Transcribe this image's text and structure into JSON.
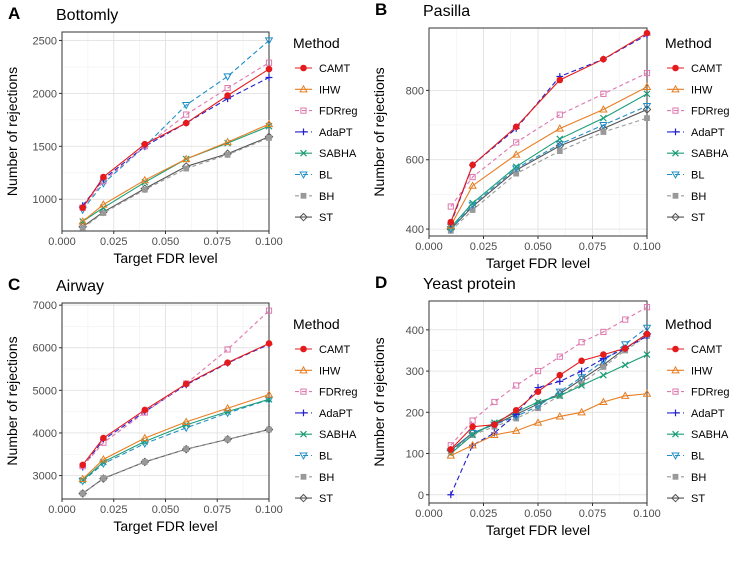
{
  "figure": {
    "legend_title": "Method",
    "methods": [
      {
        "name": "CAMT",
        "color": "#e41a1c",
        "marker": "circle",
        "dash": ""
      },
      {
        "name": "IHW",
        "color": "#e67e22",
        "marker": "triangle-up",
        "dash": ""
      },
      {
        "name": "FDRreg",
        "color": "#de77ae",
        "marker": "square-open",
        "dash": "4,3"
      },
      {
        "name": "AdaPT",
        "color": "#2020d0",
        "marker": "plus",
        "dash": "5,3"
      },
      {
        "name": "SABHA",
        "color": "#1b9e77",
        "marker": "x",
        "dash": ""
      },
      {
        "name": "BL",
        "color": "#1f8fc9",
        "marker": "triangle-down",
        "dash": "5,3"
      },
      {
        "name": "BH",
        "color": "#999999",
        "marker": "square",
        "dash": "4,3"
      },
      {
        "name": "ST",
        "color": "#555555",
        "marker": "diamond",
        "dash": ""
      }
    ]
  },
  "chart_data": [
    {
      "type": "line",
      "panel": "A",
      "title": "Bottomly",
      "xlabel": "Target FDR level",
      "ylabel": "Number of rejections",
      "x": [
        0.01,
        0.02,
        0.04,
        0.06,
        0.08,
        0.1
      ],
      "xlim": [
        0.0,
        0.1
      ],
      "xticks": [
        0.0,
        0.025,
        0.05,
        0.075,
        0.1
      ],
      "xtick_labels": [
        "0.000",
        "0.025",
        "0.050",
        "0.075",
        "0.100"
      ],
      "ylim": [
        700,
        2580
      ],
      "yticks": [
        1000,
        1500,
        2000,
        2500
      ],
      "ytick_labels": [
        "1000",
        "1500",
        "2000",
        "2500"
      ],
      "series": [
        {
          "name": "CAMT",
          "values": [
            920,
            1210,
            1520,
            1720,
            1980,
            2230
          ]
        },
        {
          "name": "IHW",
          "values": [
            790,
            950,
            1180,
            1380,
            1540,
            1710
          ]
        },
        {
          "name": "FDRreg",
          "values": [
            920,
            1170,
            1500,
            1800,
            2050,
            2290
          ]
        },
        {
          "name": "AdaPT",
          "values": [
            940,
            1190,
            1500,
            1720,
            1950,
            2150
          ]
        },
        {
          "name": "SABHA",
          "values": [
            790,
            920,
            1160,
            1380,
            1530,
            1690
          ]
        },
        {
          "name": "BL",
          "values": [
            900,
            1150,
            1500,
            1890,
            2160,
            2500
          ]
        },
        {
          "name": "BH",
          "values": [
            730,
            870,
            1090,
            1290,
            1420,
            1580
          ]
        },
        {
          "name": "ST",
          "values": [
            740,
            880,
            1100,
            1310,
            1430,
            1590
          ]
        }
      ]
    },
    {
      "type": "line",
      "panel": "B",
      "title": "Pasilla",
      "xlabel": "Target FDR level",
      "ylabel": "Number of rejections",
      "x": [
        0.01,
        0.02,
        0.04,
        0.06,
        0.08,
        0.1
      ],
      "xlim": [
        0.0,
        0.1
      ],
      "xticks": [
        0.0,
        0.025,
        0.05,
        0.075,
        0.1
      ],
      "xtick_labels": [
        "0.000",
        "0.025",
        "0.050",
        "0.075",
        "0.100"
      ],
      "ylim": [
        380,
        980
      ],
      "yticks": [
        400,
        600,
        800
      ],
      "ytick_labels": [
        "400",
        "600",
        "800"
      ],
      "series": [
        {
          "name": "CAMT",
          "values": [
            420,
            585,
            695,
            830,
            890,
            965
          ]
        },
        {
          "name": "IHW",
          "values": [
            410,
            525,
            615,
            690,
            745,
            810
          ]
        },
        {
          "name": "FDRreg",
          "values": [
            465,
            550,
            650,
            730,
            790,
            850
          ]
        },
        {
          "name": "AdaPT",
          "values": [
            415,
            585,
            690,
            840,
            890,
            960
          ]
        },
        {
          "name": "SABHA",
          "values": [
            405,
            475,
            580,
            660,
            720,
            790
          ]
        },
        {
          "name": "BL",
          "values": [
            400,
            470,
            575,
            645,
            700,
            755
          ]
        },
        {
          "name": "BH",
          "values": [
            395,
            455,
            560,
            625,
            680,
            720
          ]
        },
        {
          "name": "ST",
          "values": [
            400,
            465,
            570,
            640,
            690,
            745
          ]
        }
      ]
    },
    {
      "type": "line",
      "panel": "C",
      "title": "Airway",
      "xlabel": "Target FDR level",
      "ylabel": "Number of rejections",
      "x": [
        0.01,
        0.02,
        0.04,
        0.06,
        0.08,
        0.1
      ],
      "xlim": [
        0.0,
        0.1
      ],
      "xticks": [
        0.0,
        0.025,
        0.05,
        0.075,
        0.1
      ],
      "xtick_labels": [
        "0.000",
        "0.025",
        "0.050",
        "0.075",
        "0.100"
      ],
      "ylim": [
        2450,
        7050
      ],
      "yticks": [
        3000,
        4000,
        5000,
        6000,
        7000
      ],
      "ytick_labels": [
        "3000",
        "4000",
        "5000",
        "6000",
        "7000"
      ],
      "series": [
        {
          "name": "CAMT",
          "values": [
            3250,
            3880,
            4540,
            5150,
            5650,
            6100
          ]
        },
        {
          "name": "IHW",
          "values": [
            2920,
            3380,
            3880,
            4260,
            4580,
            4900
          ]
        },
        {
          "name": "FDRreg",
          "values": [
            3220,
            3770,
            4480,
            5160,
            5960,
            6870
          ]
        },
        {
          "name": "AdaPT",
          "values": [
            3200,
            3840,
            4500,
            5130,
            5640,
            6080
          ]
        },
        {
          "name": "SABHA",
          "values": [
            2890,
            3320,
            3800,
            4190,
            4500,
            4790
          ]
        },
        {
          "name": "BL",
          "values": [
            2870,
            3280,
            3750,
            4120,
            4470,
            4780
          ]
        },
        {
          "name": "BH",
          "values": [
            2580,
            2940,
            3320,
            3620,
            3850,
            4080
          ]
        },
        {
          "name": "ST",
          "values": [
            2580,
            2930,
            3320,
            3620,
            3850,
            4080
          ]
        }
      ]
    },
    {
      "type": "line",
      "panel": "D",
      "title": "Yeast protein",
      "xlabel": "Target FDR level",
      "ylabel": "Number of rejections",
      "x": [
        0.01,
        0.02,
        0.03,
        0.04,
        0.05,
        0.06,
        0.07,
        0.08,
        0.09,
        0.1
      ],
      "xlim": [
        0.0,
        0.1
      ],
      "xticks": [
        0.0,
        0.025,
        0.05,
        0.075,
        0.1
      ],
      "xtick_labels": [
        "0.000",
        "0.025",
        "0.050",
        "0.075",
        "0.100"
      ],
      "ylim": [
        -20,
        470
      ],
      "yticks": [
        0,
        100,
        200,
        300,
        400
      ],
      "ytick_labels": [
        "0",
        "100",
        "200",
        "300",
        "400"
      ],
      "series": [
        {
          "name": "CAMT",
          "values": [
            110,
            165,
            170,
            205,
            250,
            290,
            325,
            340,
            355,
            390
          ]
        },
        {
          "name": "IHW",
          "values": [
            95,
            120,
            145,
            155,
            175,
            190,
            200,
            225,
            240,
            245
          ]
        },
        {
          "name": "FDRreg",
          "values": [
            120,
            180,
            225,
            265,
            300,
            335,
            370,
            395,
            425,
            455
          ]
        },
        {
          "name": "AdaPT",
          "values": [
            0,
            120,
            150,
            195,
            260,
            275,
            300,
            330,
            355,
            385
          ]
        },
        {
          "name": "SABHA",
          "values": [
            100,
            145,
            175,
            200,
            225,
            240,
            265,
            290,
            315,
            340
          ]
        },
        {
          "name": "BL",
          "values": [
            105,
            150,
            170,
            190,
            215,
            250,
            285,
            325,
            365,
            405
          ]
        },
        {
          "name": "BH",
          "values": [
            105,
            145,
            165,
            185,
            210,
            240,
            270,
            310,
            350,
            385
          ]
        },
        {
          "name": "ST",
          "values": [
            108,
            150,
            170,
            195,
            220,
            245,
            280,
            315,
            355,
            390
          ]
        }
      ]
    }
  ]
}
